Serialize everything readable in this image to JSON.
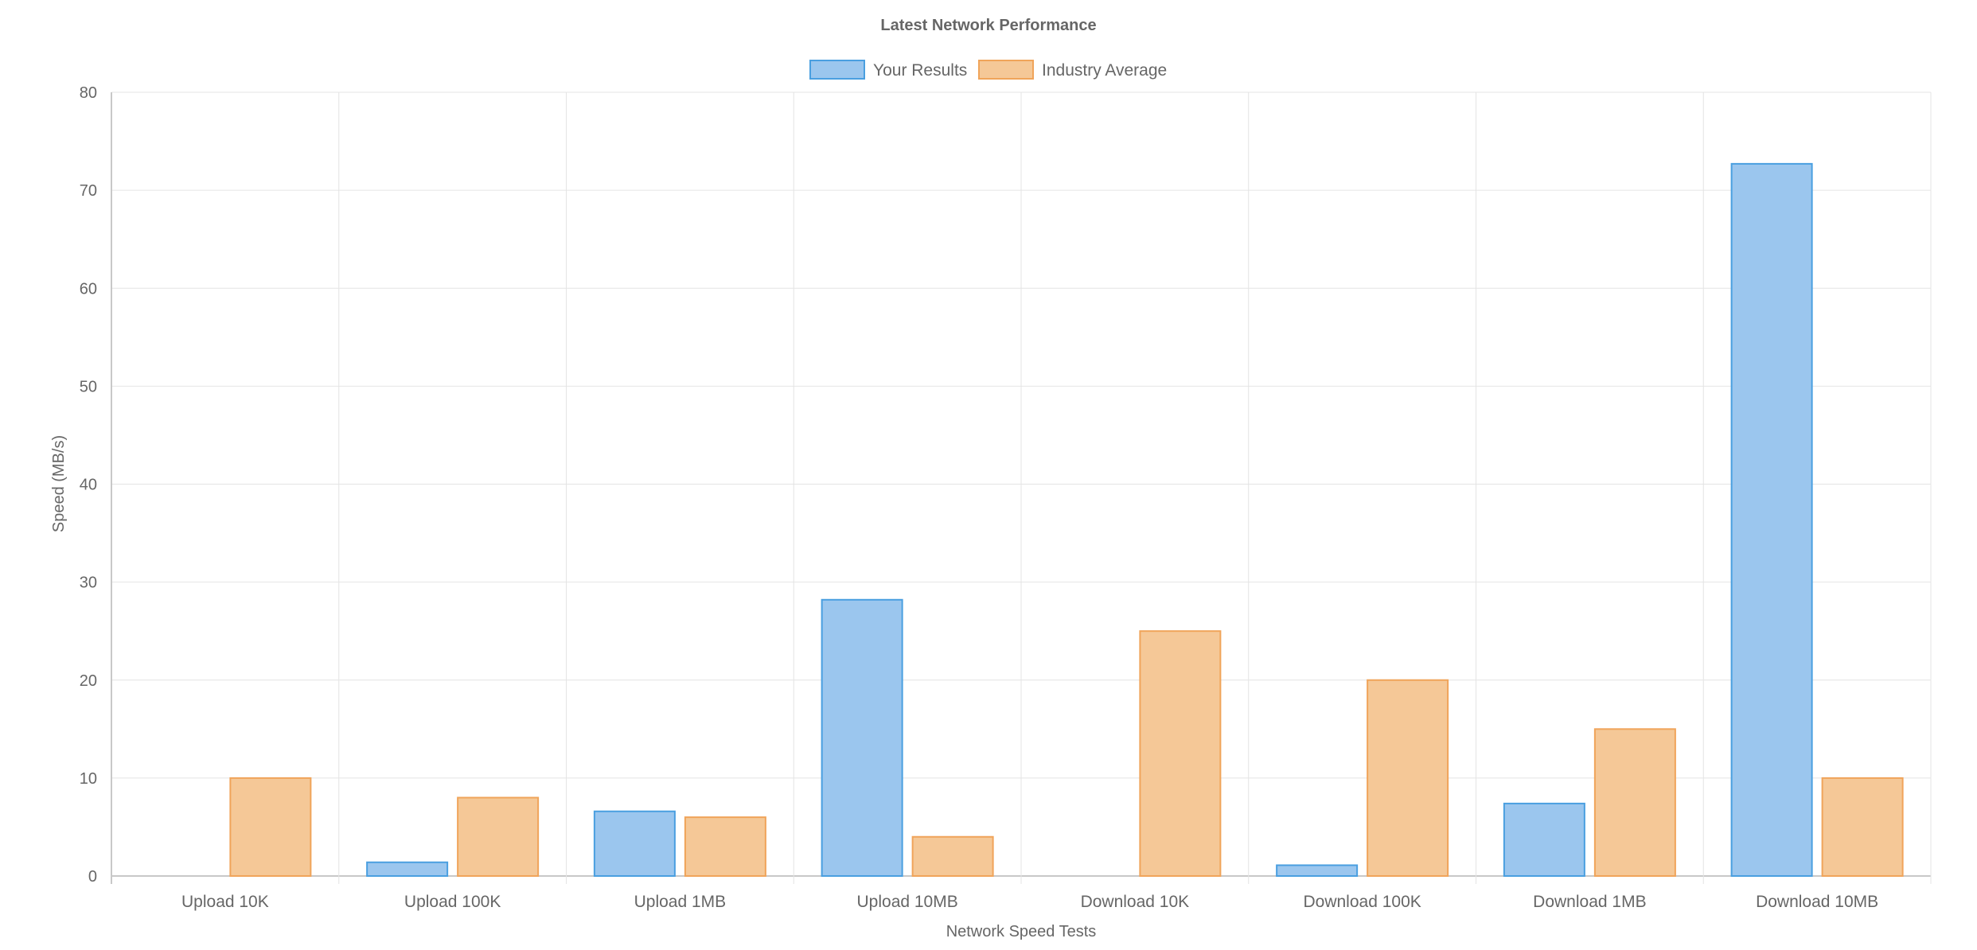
{
  "chart_data": {
    "type": "bar",
    "title": "Latest Network Performance",
    "xlabel": "Network Speed Tests",
    "ylabel": "Speed (MB/s)",
    "ylim": [
      0,
      80
    ],
    "yticks": [
      0,
      10,
      20,
      30,
      40,
      50,
      60,
      70,
      80
    ],
    "categories": [
      "Upload 10K",
      "Upload 100K",
      "Upload 1MB",
      "Upload 10MB",
      "Download 10K",
      "Download 100K",
      "Download 1MB",
      "Download 10MB"
    ],
    "series": [
      {
        "name": "Your Results",
        "values": [
          0,
          1.4,
          6.6,
          28.2,
          0,
          1.1,
          7.4,
          72.7
        ],
        "fill": "#9bc6ee",
        "stroke": "#4a9fe0"
      },
      {
        "name": "Industry Average",
        "values": [
          10,
          8,
          6,
          4,
          25,
          20,
          15,
          10
        ],
        "fill": "#f5c897",
        "stroke": "#f0a45a"
      }
    ],
    "grid": true,
    "legend_position": "top"
  }
}
